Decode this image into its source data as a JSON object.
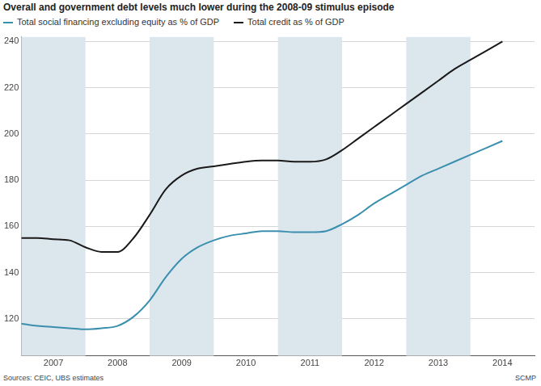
{
  "chart_data": {
    "type": "line",
    "title": "Overall and government debt levels much lower during the 2008-09 stimulus episode",
    "source": "Sources: CEIC, UBS estimates",
    "credit": "SCMP",
    "x": [
      2006.5,
      2006.75,
      2007,
      2007.25,
      2007.5,
      2007.75,
      2008,
      2008.25,
      2008.5,
      2008.75,
      2009,
      2009.25,
      2009.5,
      2009.75,
      2010,
      2010.25,
      2010.5,
      2010.75,
      2011,
      2011.25,
      2011.5,
      2011.75,
      2012,
      2012.25,
      2012.5,
      2012.75,
      2013,
      2013.25,
      2013.5,
      2013.75,
      2014
    ],
    "series": [
      {
        "name": "Total social financing excluding equity as % of GDP",
        "color": "#3a8fae",
        "values": [
          118,
          117,
          116.5,
          116,
          115.5,
          116,
          117,
          121,
          128,
          138,
          146,
          151,
          154,
          156,
          157,
          158,
          158,
          157.5,
          157.5,
          158,
          161,
          165,
          170,
          174,
          178,
          182,
          185,
          188,
          191,
          194,
          197
        ]
      },
      {
        "name": "Total credit as % of GDP",
        "color": "#1a1a1a",
        "values": [
          155,
          155,
          154.5,
          154,
          151,
          149,
          149,
          155,
          165,
          176,
          182,
          185,
          186,
          187,
          188,
          188.5,
          188.5,
          188,
          188,
          189,
          193,
          198,
          203,
          208,
          213,
          218,
          223,
          228,
          232,
          236,
          240
        ]
      }
    ],
    "xlim": [
      2006.5,
      2014.5
    ],
    "xticks": [
      2007,
      2008,
      2009,
      2010,
      2011,
      2012,
      2013,
      2014
    ],
    "ylim": [
      104,
      242
    ],
    "yticks": [
      120,
      140,
      160,
      180,
      200,
      220,
      240
    ],
    "grid": "y",
    "legend": "top"
  }
}
